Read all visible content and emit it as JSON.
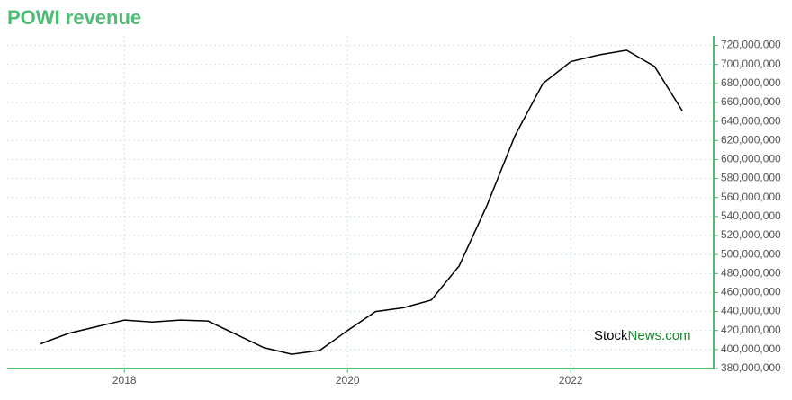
{
  "chart_data": {
    "type": "line",
    "title": "POWI revenue",
    "x": [
      2017.25,
      2017.5,
      2017.75,
      2018,
      2018.25,
      2018.5,
      2018.75,
      2019,
      2019.25,
      2019.5,
      2019.75,
      2020,
      2020.25,
      2020.5,
      2020.75,
      2021,
      2021.25,
      2021.5,
      2021.75,
      2022,
      2022.25,
      2022.5,
      2022.75,
      2023
    ],
    "series": [
      {
        "color": "#000000",
        "values": [
          406000000,
          417000000,
          424000000,
          431000000,
          429000000,
          431000000,
          430000000,
          416000000,
          402000000,
          395000000,
          399000000,
          420000000,
          440000000,
          444000000,
          452000000,
          488000000,
          552000000,
          625000000,
          680000000,
          703000000,
          710000000,
          715000000,
          698000000,
          651000000
        ]
      }
    ],
    "xlim": [
      2016.95,
      2023.28
    ],
    "xticks": [
      2018,
      2020,
      2022
    ],
    "ylim": [
      380000000,
      730000000
    ],
    "yticks": [
      {
        "value": 380000000,
        "label": "380,000,000"
      },
      {
        "value": 400000000,
        "label": "400,000,000"
      },
      {
        "value": 420000000,
        "label": "420,000,000"
      },
      {
        "value": 440000000,
        "label": "440,000,000"
      },
      {
        "value": 460000000,
        "label": "460,000,000"
      },
      {
        "value": 480000000,
        "label": "480,000,000"
      },
      {
        "value": 500000000,
        "label": "500,000,000"
      },
      {
        "value": 520000000,
        "label": "520,000,000"
      },
      {
        "value": 540000000,
        "label": "540,000,000"
      },
      {
        "value": 560000000,
        "label": "560,000,000"
      },
      {
        "value": 580000000,
        "label": "580,000,000"
      },
      {
        "value": 600000000,
        "label": "600,000,000"
      },
      {
        "value": 620000000,
        "label": "620,000,000"
      },
      {
        "value": 640000000,
        "label": "640,000,000"
      },
      {
        "value": 660000000,
        "label": "660,000,000"
      },
      {
        "value": 680000000,
        "label": "680,000,000"
      },
      {
        "value": 700000000,
        "label": "700,000,000"
      },
      {
        "value": 720000000,
        "label": "720,000,000"
      }
    ],
    "grid": true,
    "axis_color": "#4dbd74",
    "watermark": [
      "Stock",
      "News.com"
    ]
  }
}
